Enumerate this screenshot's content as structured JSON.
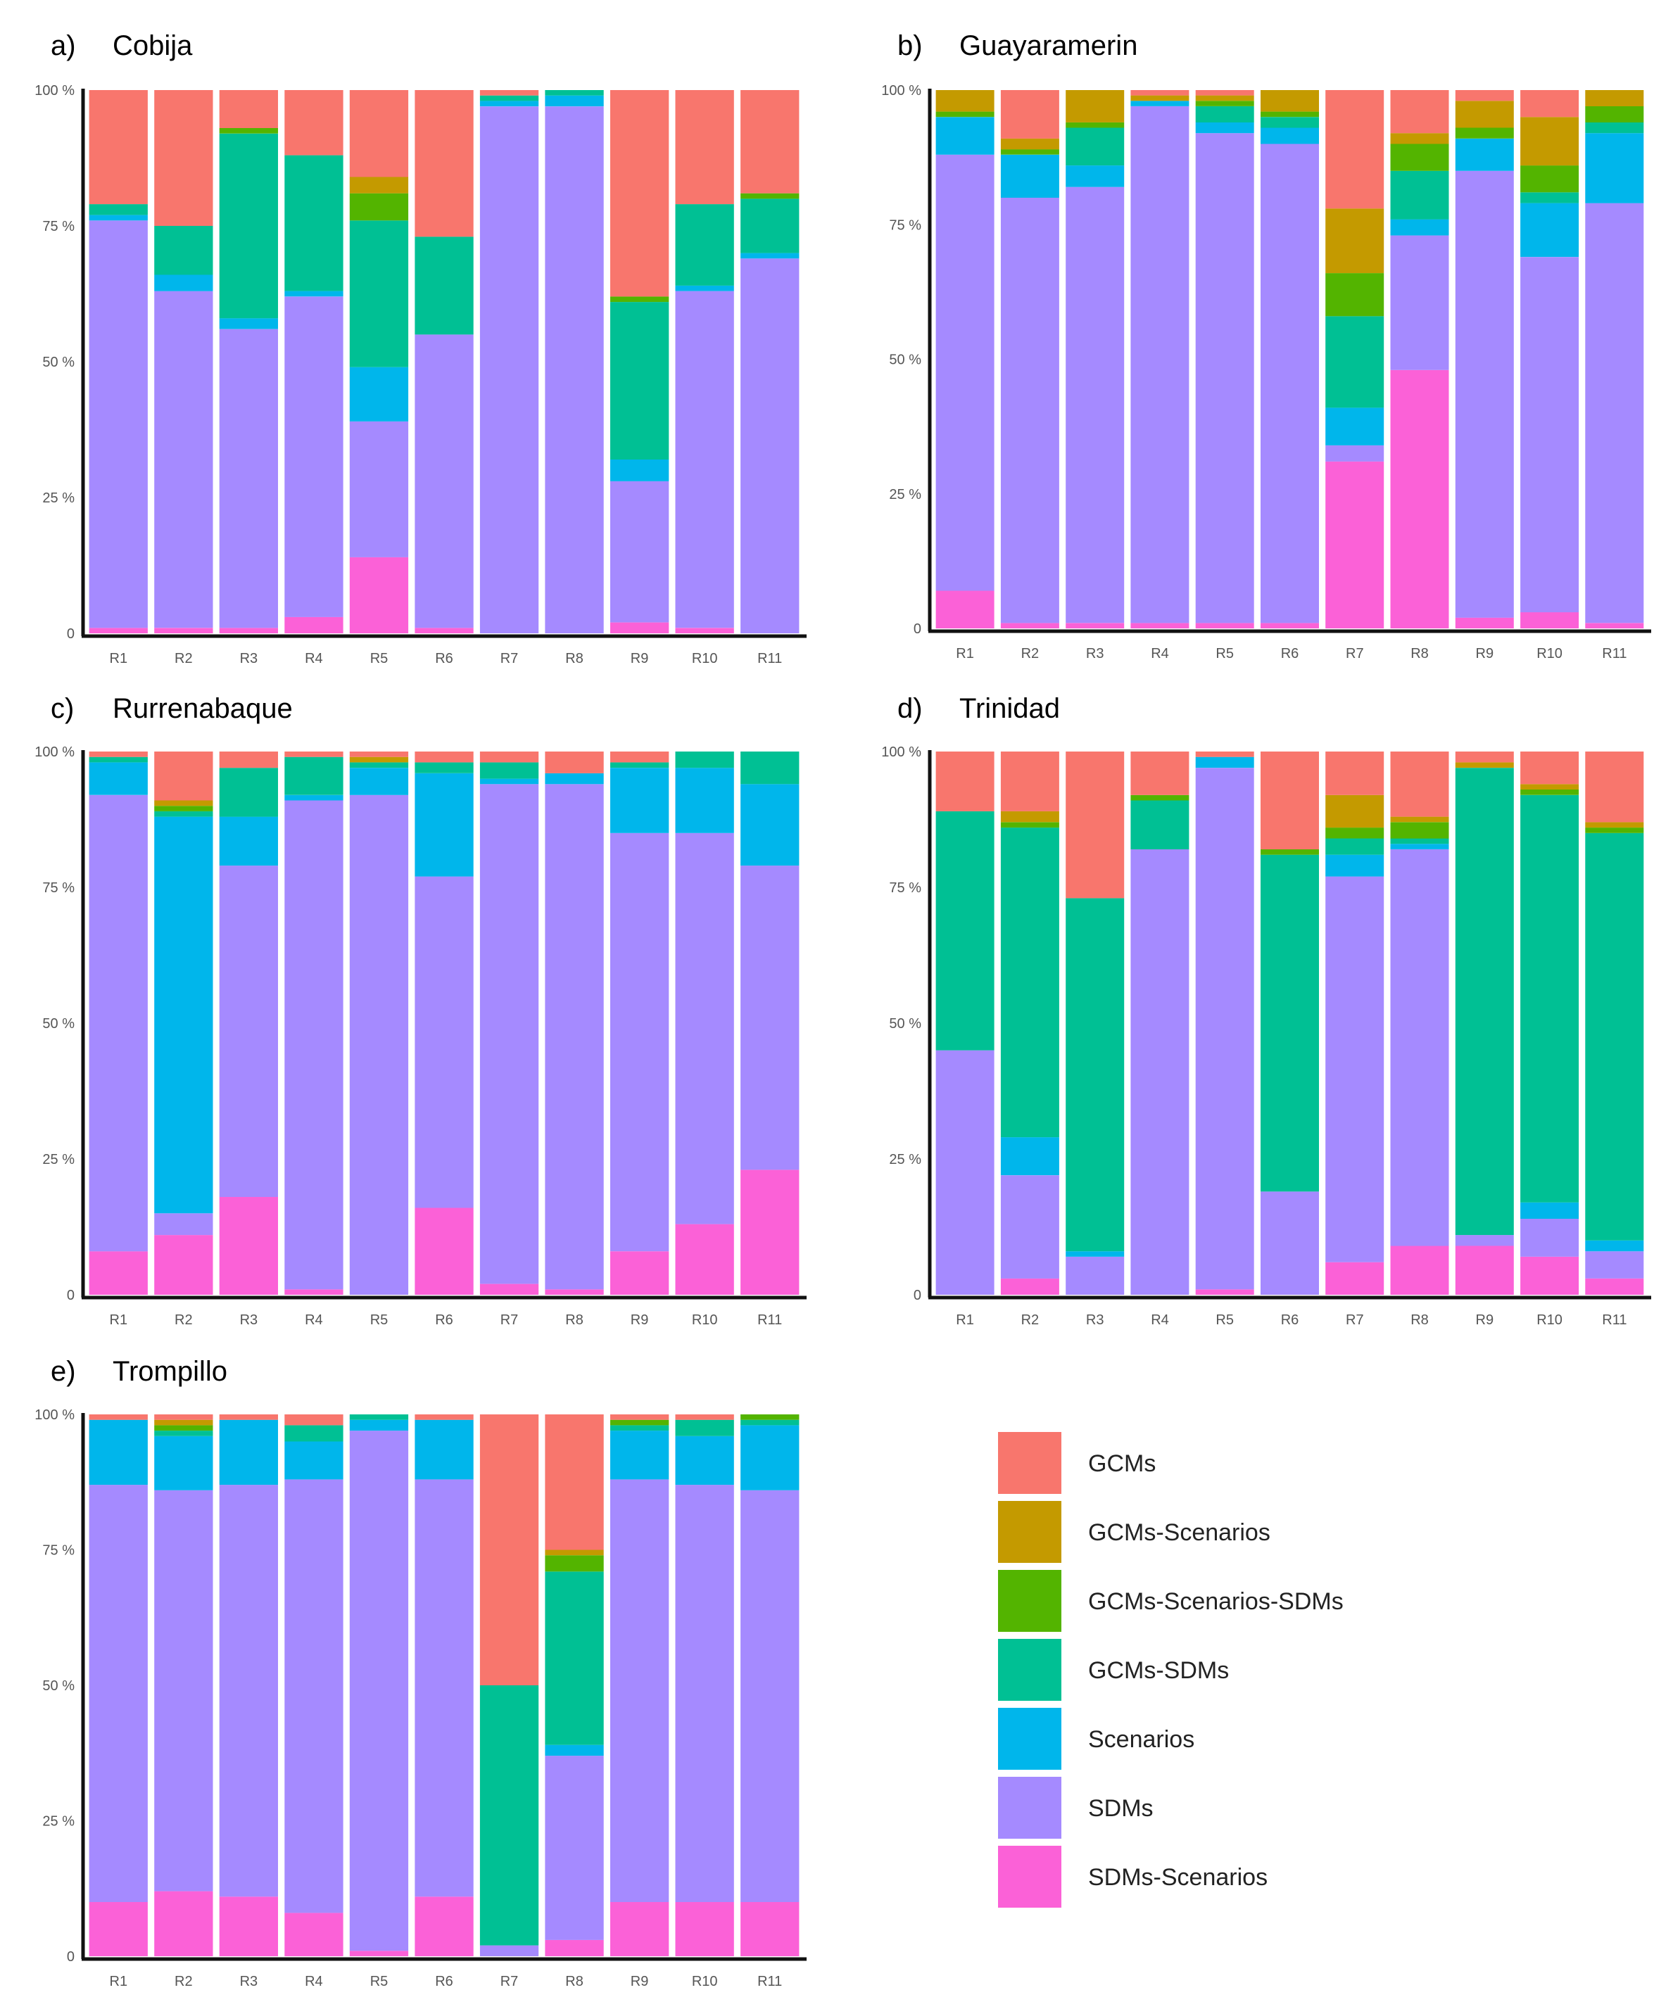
{
  "colors": {
    "GCMs": "#F8766D",
    "GCMs-Scenarios": "#C49A00",
    "GCMs-Scenarios-SDMs": "#53B400",
    "GCMs-SDMs": "#00C094",
    "Scenarios": "#00B6EB",
    "SDMs": "#A58AFF",
    "SDMs-Scenarios": "#FB61D7"
  },
  "legend": {
    "items": [
      "GCMs",
      "GCMs-Scenarios",
      "GCMs-Scenarios-SDMs",
      "GCMs-SDMs",
      "Scenarios",
      "SDMs",
      "SDMs-Scenarios"
    ]
  },
  "chart_data": [
    {
      "type": "bar",
      "stacked": true,
      "letter": "a)",
      "title": "Cobija",
      "categories": [
        "R1",
        "R2",
        "R3",
        "R4",
        "R5",
        "R6",
        "R7",
        "R8",
        "R9",
        "R10",
        "R11"
      ],
      "yticks": [
        "0",
        "25 %",
        "50 %",
        "75 %",
        "100 %"
      ],
      "ylim": [
        0,
        100
      ],
      "series": [
        {
          "name": "SDMs-Scenarios",
          "values": [
            1,
            1,
            1,
            3,
            14,
            1,
            0,
            0,
            2,
            1,
            0
          ]
        },
        {
          "name": "SDMs",
          "values": [
            75,
            62,
            55,
            59,
            25,
            54,
            97,
            97,
            26,
            62,
            69
          ]
        },
        {
          "name": "Scenarios",
          "values": [
            1,
            3,
            2,
            1,
            10,
            0,
            1,
            2,
            4,
            1,
            1
          ]
        },
        {
          "name": "GCMs-SDMs",
          "values": [
            2,
            9,
            34,
            25,
            27,
            18,
            1,
            1,
            29,
            15,
            10
          ]
        },
        {
          "name": "GCMs-Scenarios-SDMs",
          "values": [
            0,
            0,
            1,
            0,
            5,
            0,
            0,
            0,
            1,
            0,
            1
          ]
        },
        {
          "name": "GCMs-Scenarios",
          "values": [
            0,
            0,
            0,
            0,
            3,
            0,
            0,
            0,
            0,
            0,
            0
          ]
        },
        {
          "name": "GCMs",
          "values": [
            21,
            25,
            7,
            12,
            16,
            27,
            1,
            0,
            38,
            21,
            19
          ]
        }
      ]
    },
    {
      "type": "bar",
      "stacked": true,
      "letter": "b)",
      "title": "Guayaramerin",
      "categories": [
        "R1",
        "R2",
        "R3",
        "R4",
        "R5",
        "R6",
        "R7",
        "R8",
        "R9",
        "R10",
        "R11"
      ],
      "yticks": [
        "0",
        "25 %",
        "50 %",
        "75 %",
        "100 %"
      ],
      "ylim": [
        0,
        100
      ],
      "series": [
        {
          "name": "SDMs-Scenarios",
          "values": [
            7,
            1,
            1,
            1,
            1,
            1,
            31,
            48,
            2,
            3,
            1
          ]
        },
        {
          "name": "SDMs",
          "values": [
            81,
            79,
            81,
            96,
            91,
            89,
            3,
            25,
            83,
            66,
            78
          ]
        },
        {
          "name": "Scenarios",
          "values": [
            7,
            8,
            4,
            1,
            2,
            3,
            7,
            3,
            6,
            10,
            13
          ]
        },
        {
          "name": "GCMs-SDMs",
          "values": [
            0,
            0,
            7,
            0,
            3,
            2,
            17,
            9,
            0,
            2,
            2
          ]
        },
        {
          "name": "GCMs-Scenarios-SDMs",
          "values": [
            1,
            1,
            1,
            0,
            1,
            1,
            8,
            5,
            2,
            5,
            3
          ]
        },
        {
          "name": "GCMs-Scenarios",
          "values": [
            4,
            2,
            6,
            1,
            1,
            4,
            12,
            2,
            5,
            9,
            3
          ]
        },
        {
          "name": "GCMs",
          "values": [
            0,
            9,
            0,
            1,
            1,
            0,
            22,
            8,
            2,
            5,
            0
          ]
        }
      ]
    },
    {
      "type": "bar",
      "stacked": true,
      "letter": "c)",
      "title": "Rurrenabaque",
      "categories": [
        "R1",
        "R2",
        "R3",
        "R4",
        "R5",
        "R6",
        "R7",
        "R8",
        "R9",
        "R10",
        "R11"
      ],
      "yticks": [
        "0",
        "25 %",
        "50 %",
        "75 %",
        "100 %"
      ],
      "ylim": [
        0,
        100
      ],
      "series": [
        {
          "name": "SDMs-Scenarios",
          "values": [
            8,
            11,
            18,
            1,
            0,
            16,
            2,
            1,
            8,
            13,
            23
          ]
        },
        {
          "name": "SDMs",
          "values": [
            84,
            4,
            61,
            90,
            92,
            61,
            92,
            93,
            77,
            72,
            56
          ]
        },
        {
          "name": "Scenarios",
          "values": [
            6,
            73,
            9,
            1,
            5,
            19,
            1,
            2,
            12,
            12,
            15
          ]
        },
        {
          "name": "GCMs-SDMs",
          "values": [
            1,
            1,
            9,
            7,
            1,
            2,
            3,
            0,
            1,
            3,
            6
          ]
        },
        {
          "name": "GCMs-Scenarios-SDMs",
          "values": [
            0,
            1,
            0,
            0,
            0,
            0,
            0,
            0,
            0,
            0,
            0
          ]
        },
        {
          "name": "GCMs-Scenarios",
          "values": [
            0,
            1,
            0,
            0,
            1,
            0,
            0,
            0,
            0,
            0,
            0
          ]
        },
        {
          "name": "GCMs",
          "values": [
            1,
            9,
            3,
            1,
            1,
            2,
            2,
            4,
            2,
            0,
            0
          ]
        }
      ]
    },
    {
      "type": "bar",
      "stacked": true,
      "letter": "d)",
      "title": "Trinidad",
      "categories": [
        "R1",
        "R2",
        "R3",
        "R4",
        "R5",
        "R6",
        "R7",
        "R8",
        "R9",
        "R10",
        "R11"
      ],
      "yticks": [
        "0",
        "25 %",
        "50 %",
        "75 %",
        "100 %"
      ],
      "ylim": [
        0,
        100
      ],
      "series": [
        {
          "name": "SDMs-Scenarios",
          "values": [
            0,
            3,
            0,
            0,
            1,
            0,
            6,
            9,
            9,
            7,
            3
          ]
        },
        {
          "name": "SDMs",
          "values": [
            45,
            19,
            7,
            82,
            96,
            19,
            71,
            73,
            2,
            7,
            5
          ]
        },
        {
          "name": "Scenarios",
          "values": [
            0,
            7,
            1,
            0,
            2,
            0,
            4,
            1,
            0,
            3,
            2
          ]
        },
        {
          "name": "GCMs-SDMs",
          "values": [
            44,
            57,
            65,
            9,
            0,
            62,
            3,
            1,
            86,
            75,
            75
          ]
        },
        {
          "name": "GCMs-Scenarios-SDMs",
          "values": [
            0,
            1,
            0,
            1,
            0,
            1,
            2,
            3,
            0,
            1,
            1
          ]
        },
        {
          "name": "GCMs-Scenarios",
          "values": [
            0,
            2,
            0,
            0,
            0,
            0,
            6,
            1,
            1,
            1,
            1
          ]
        },
        {
          "name": "GCMs",
          "values": [
            11,
            11,
            27,
            8,
            1,
            18,
            8,
            12,
            2,
            6,
            13
          ]
        }
      ]
    },
    {
      "type": "bar",
      "stacked": true,
      "letter": "e)",
      "title": "Trompillo",
      "categories": [
        "R1",
        "R2",
        "R3",
        "R4",
        "R5",
        "R6",
        "R7",
        "R8",
        "R9",
        "R10",
        "R11"
      ],
      "yticks": [
        "0",
        "25 %",
        "50 %",
        "75 %",
        "100 %"
      ],
      "ylim": [
        0,
        100
      ],
      "series": [
        {
          "name": "SDMs-Scenarios",
          "values": [
            10,
            12,
            11,
            8,
            1,
            11,
            0,
            3,
            10,
            10,
            10
          ]
        },
        {
          "name": "SDMs",
          "values": [
            77,
            74,
            76,
            80,
            96,
            77,
            2,
            34,
            78,
            77,
            76
          ]
        },
        {
          "name": "Scenarios",
          "values": [
            12,
            10,
            12,
            7,
            2,
            11,
            0,
            2,
            9,
            9,
            12
          ]
        },
        {
          "name": "GCMs-SDMs",
          "values": [
            0,
            1,
            0,
            3,
            1,
            0,
            48,
            32,
            1,
            3,
            1
          ]
        },
        {
          "name": "GCMs-Scenarios-SDMs",
          "values": [
            0,
            1,
            0,
            0,
            0,
            0,
            0,
            3,
            1,
            0,
            1
          ]
        },
        {
          "name": "GCMs-Scenarios",
          "values": [
            0,
            1,
            0,
            0,
            0,
            0,
            0,
            1,
            0,
            0,
            0
          ]
        },
        {
          "name": "GCMs",
          "values": [
            1,
            1,
            1,
            2,
            0,
            1,
            50,
            25,
            1,
            1,
            0
          ]
        }
      ]
    }
  ]
}
